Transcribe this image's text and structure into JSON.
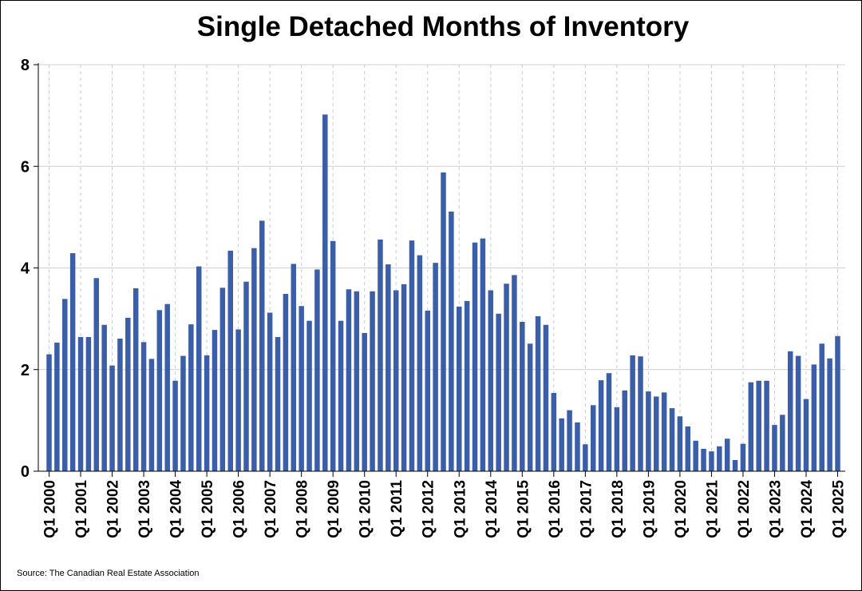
{
  "chart_data": {
    "type": "bar",
    "title": "Single Detached Months of Inventory",
    "source": "Source: The Canadian Real Estate Association",
    "xlabel": "",
    "ylabel": "",
    "ylim": [
      0,
      8
    ],
    "yticks": [
      0,
      2,
      4,
      6,
      8
    ],
    "grid": true,
    "bar_color": "#3b5ea8",
    "tick_labels": [
      "Q1 2000",
      "Q1 2001",
      "Q1 2002",
      "Q1 2003",
      "Q1 2004",
      "Q1 2005",
      "Q1 2006",
      "Q1 2007",
      "Q1 2008",
      "Q1 2009",
      "Q1 2010",
      "Q1 2011",
      "Q1 2012",
      "Q1 2013",
      "Q1 2014",
      "Q1 2015",
      "Q1 2016",
      "Q1 2017",
      "Q1 2018",
      "Q1 2019",
      "Q1 2020",
      "Q1 2021",
      "Q1 2022",
      "Q1 2023",
      "Q1 2024",
      "Q1 2025"
    ],
    "categories": [
      "Q1 2000",
      "Q2 2000",
      "Q3 2000",
      "Q4 2000",
      "Q1 2001",
      "Q2 2001",
      "Q3 2001",
      "Q4 2001",
      "Q1 2002",
      "Q2 2002",
      "Q3 2002",
      "Q4 2002",
      "Q1 2003",
      "Q2 2003",
      "Q3 2003",
      "Q4 2003",
      "Q1 2004",
      "Q2 2004",
      "Q3 2004",
      "Q4 2004",
      "Q1 2005",
      "Q2 2005",
      "Q3 2005",
      "Q4 2005",
      "Q1 2006",
      "Q2 2006",
      "Q3 2006",
      "Q4 2006",
      "Q1 2007",
      "Q2 2007",
      "Q3 2007",
      "Q4 2007",
      "Q1 2008",
      "Q2 2008",
      "Q3 2008",
      "Q4 2008",
      "Q1 2009",
      "Q2 2009",
      "Q3 2009",
      "Q4 2009",
      "Q1 2010",
      "Q2 2010",
      "Q3 2010",
      "Q4 2010",
      "Q1 2011",
      "Q2 2011",
      "Q3 2011",
      "Q4 2011",
      "Q1 2012",
      "Q2 2012",
      "Q3 2012",
      "Q4 2012",
      "Q1 2013",
      "Q2 2013",
      "Q3 2013",
      "Q4 2013",
      "Q1 2014",
      "Q2 2014",
      "Q3 2014",
      "Q4 2014",
      "Q1 2015",
      "Q2 2015",
      "Q3 2015",
      "Q4 2015",
      "Q1 2016",
      "Q2 2016",
      "Q3 2016",
      "Q4 2016",
      "Q1 2017",
      "Q2 2017",
      "Q3 2017",
      "Q4 2017",
      "Q1 2018",
      "Q2 2018",
      "Q3 2018",
      "Q4 2018",
      "Q1 2019",
      "Q2 2019",
      "Q3 2019",
      "Q4 2019",
      "Q1 2020",
      "Q2 2020",
      "Q3 2020",
      "Q4 2020",
      "Q1 2021",
      "Q2 2021",
      "Q3 2021",
      "Q4 2021",
      "Q1 2022",
      "Q2 2022",
      "Q3 2022",
      "Q4 2022",
      "Q1 2023",
      "Q2 2023",
      "Q3 2023",
      "Q4 2023",
      "Q1 2024",
      "Q2 2024",
      "Q3 2024",
      "Q4 2024",
      "Q1 2025"
    ],
    "values": [
      2.3,
      2.53,
      3.39,
      4.29,
      2.64,
      2.64,
      3.8,
      2.88,
      2.08,
      2.61,
      3.02,
      3.6,
      2.54,
      2.21,
      3.17,
      3.29,
      1.78,
      2.27,
      2.89,
      4.03,
      2.28,
      2.78,
      3.61,
      4.34,
      2.79,
      3.73,
      4.39,
      4.93,
      3.12,
      2.64,
      3.49,
      4.08,
      3.25,
      2.96,
      3.97,
      7.02,
      4.53,
      2.96,
      3.58,
      3.54,
      2.72,
      3.54,
      4.56,
      4.07,
      3.56,
      3.68,
      4.54,
      4.25,
      3.16,
      4.1,
      5.88,
      5.11,
      3.24,
      3.35,
      4.5,
      4.58,
      3.56,
      3.1,
      3.69,
      3.86,
      2.94,
      2.51,
      3.05,
      2.88,
      1.54,
      1.04,
      1.2,
      0.96,
      0.53,
      1.3,
      1.79,
      1.93,
      1.26,
      1.59,
      2.28,
      2.26,
      1.57,
      1.47,
      1.55,
      1.24,
      1.08,
      0.88,
      0.6,
      0.44,
      0.39,
      0.49,
      0.64,
      0.22,
      0.54,
      1.75,
      1.78,
      1.78,
      0.91,
      1.11,
      2.36,
      2.27,
      1.42,
      2.1,
      2.51,
      2.22,
      2.66
    ]
  }
}
